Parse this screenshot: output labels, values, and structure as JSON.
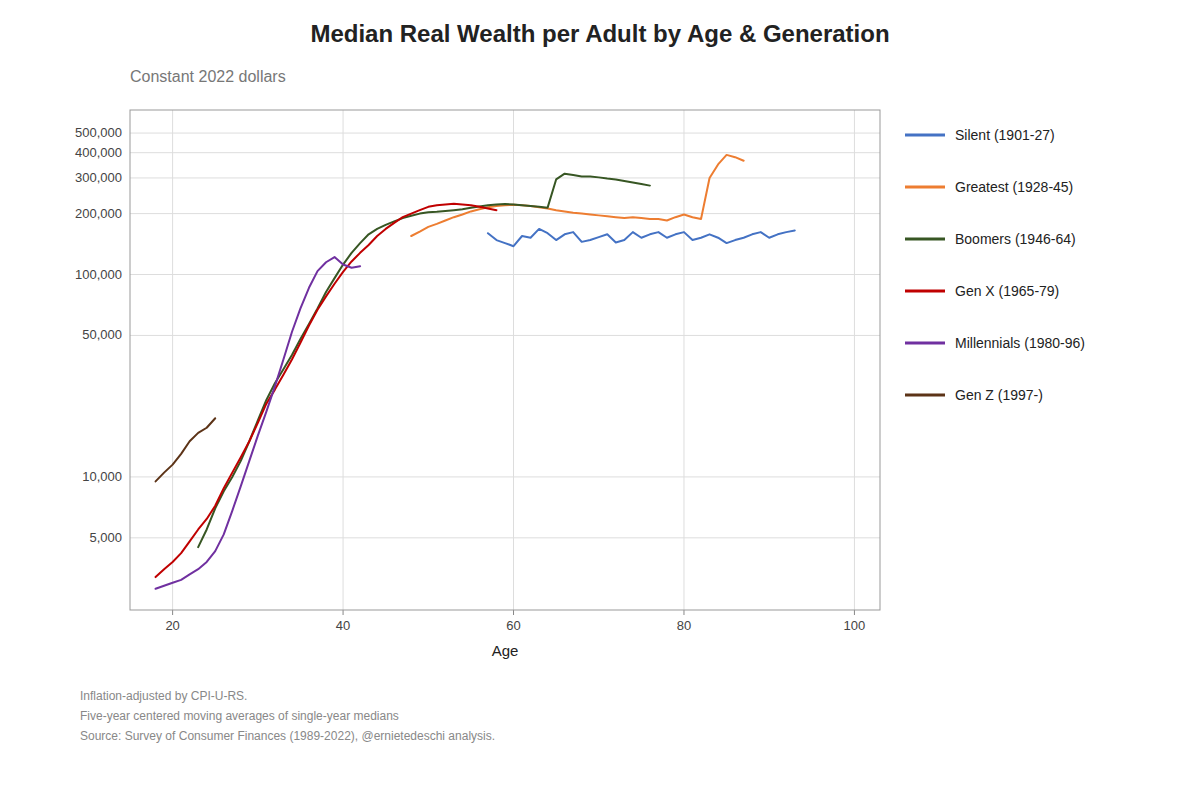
{
  "chart_data": {
    "type": "line",
    "title": "Median Real Wealth per Adult by Age & Generation",
    "subtitle": "Constant 2022 dollars",
    "x_label": "Age",
    "footnotes": [
      "Inflation-adjusted by CPI-U-RS.",
      "Five-year centered moving averages of single-year medians",
      "Source: Survey of Consumer Finances (1989-2022), @ernietedeschi analysis."
    ],
    "log": "y",
    "grid": true,
    "legend": "right",
    "xlim": [
      15,
      103
    ],
    "xticks": [
      20,
      40,
      60,
      80,
      100
    ],
    "ylim": [
      2200,
      650000
    ],
    "yticks": [
      {
        "value": 5000,
        "label": "5,000"
      },
      {
        "value": 10000,
        "label": "10,000"
      },
      {
        "value": 50000,
        "label": "50,000"
      },
      {
        "value": 100000,
        "label": "100,000"
      },
      {
        "value": 200000,
        "label": "200,000"
      },
      {
        "value": 300000,
        "label": "300,000"
      },
      {
        "value": 400000,
        "label": "400,000"
      },
      {
        "value": 500000,
        "label": "500,000"
      }
    ],
    "series": [
      {
        "name": "Silent (1901-27)",
        "color": "#4472C4",
        "x": [
          57,
          58,
          59,
          60,
          61,
          62,
          63,
          64,
          65,
          66,
          67,
          68,
          69,
          70,
          71,
          72,
          73,
          74,
          75,
          76,
          77,
          78,
          79,
          80,
          81,
          82,
          83,
          84,
          85,
          86,
          87,
          88,
          89,
          90,
          91,
          92,
          93
        ],
        "values": [
          160000,
          148000,
          143000,
          138000,
          155000,
          152000,
          168000,
          160000,
          148000,
          158000,
          162000,
          145000,
          148000,
          153000,
          158000,
          144000,
          148000,
          162000,
          152000,
          158000,
          162000,
          152000,
          158000,
          162000,
          148000,
          152000,
          158000,
          152000,
          143000,
          148000,
          152000,
          158000,
          162000,
          152000,
          158000,
          162000,
          165000
        ]
      },
      {
        "name": "Greatest (1928-45)",
        "color": "#ED7D31",
        "x": [
          48,
          49,
          50,
          51,
          52,
          53,
          54,
          55,
          56,
          57,
          58,
          59,
          60,
          61,
          62,
          63,
          64,
          65,
          66,
          67,
          68,
          69,
          70,
          71,
          72,
          73,
          74,
          75,
          76,
          77,
          78,
          79,
          80,
          81,
          82,
          83,
          84,
          85,
          86,
          87,
          88,
          89,
          90
        ],
        "values": [
          155000,
          163000,
          172000,
          178000,
          185000,
          192000,
          198000,
          205000,
          210000,
          215000,
          218000,
          220000,
          221000,
          220000,
          218000,
          215000,
          212000,
          208000,
          205000,
          202000,
          200000,
          198000,
          196000,
          194000,
          192000,
          190000,
          192000,
          190000,
          188000,
          188000,
          185000,
          192000,
          198000,
          192000,
          188000,
          300000,
          350000,
          390000,
          380000,
          365000,
          null,
          null,
          null
        ]
      },
      {
        "name": "Boomers (1946-64)",
        "color": "#375623",
        "x": [
          23,
          24,
          25,
          26,
          27,
          28,
          29,
          30,
          31,
          32,
          33,
          34,
          35,
          36,
          37,
          38,
          39,
          40,
          41,
          42,
          43,
          44,
          45,
          46,
          47,
          48,
          49,
          50,
          51,
          52,
          53,
          54,
          55,
          56,
          57,
          58,
          59,
          60,
          61,
          62,
          63,
          64,
          65,
          66,
          67,
          68,
          69,
          70,
          71,
          72,
          73,
          74,
          75,
          76
        ],
        "values": [
          4500,
          5500,
          7000,
          8500,
          10000,
          12000,
          15000,
          19000,
          24000,
          29000,
          34000,
          40000,
          48000,
          57000,
          68000,
          82000,
          96000,
          112000,
          128000,
          143000,
          158000,
          168000,
          176000,
          183000,
          190000,
          195000,
          200000,
          203000,
          204000,
          206000,
          208000,
          210000,
          214000,
          217000,
          220000,
          222000,
          223000,
          222000,
          220000,
          218000,
          216000,
          214000,
          295000,
          315000,
          310000,
          305000,
          305000,
          302000,
          298000,
          295000,
          290000,
          285000,
          280000,
          275000
        ]
      },
      {
        "name": "Gen X (1965-79)",
        "color": "#C00000",
        "x": [
          18,
          19,
          20,
          21,
          22,
          23,
          24,
          25,
          26,
          27,
          28,
          29,
          30,
          31,
          32,
          33,
          34,
          35,
          36,
          37,
          38,
          39,
          40,
          41,
          42,
          43,
          44,
          45,
          46,
          47,
          48,
          49,
          50,
          51,
          52,
          53,
          54,
          55,
          56,
          57,
          58
        ],
        "values": [
          3200,
          3500,
          3800,
          4200,
          4800,
          5500,
          6200,
          7200,
          8800,
          10500,
          12500,
          15000,
          18500,
          23000,
          27000,
          32000,
          38000,
          46000,
          56000,
          67000,
          78000,
          90000,
          103000,
          116000,
          128000,
          140000,
          155000,
          168000,
          180000,
          192000,
          200000,
          208000,
          216000,
          220000,
          222000,
          224000,
          222000,
          220000,
          216000,
          212000,
          208000
        ]
      },
      {
        "name": "Millennials (1980-96)",
        "color": "#7030A0",
        "x": [
          18,
          19,
          20,
          21,
          22,
          23,
          24,
          25,
          26,
          27,
          28,
          29,
          30,
          31,
          32,
          33,
          34,
          35,
          36,
          37,
          38,
          39,
          40,
          41,
          42
        ],
        "values": [
          2800,
          2900,
          3000,
          3100,
          3300,
          3500,
          3800,
          4300,
          5200,
          6800,
          9000,
          12000,
          16000,
          21000,
          28000,
          38000,
          52000,
          68000,
          86000,
          104000,
          115000,
          122000,
          112000,
          108000,
          110000
        ]
      },
      {
        "name": "Gen Z (1997-)",
        "color": "#5C3317",
        "x": [
          18,
          19,
          20,
          21,
          22,
          23,
          24,
          25
        ],
        "values": [
          9500,
          10500,
          11500,
          13000,
          15000,
          16500,
          17500,
          19500
        ]
      }
    ]
  }
}
